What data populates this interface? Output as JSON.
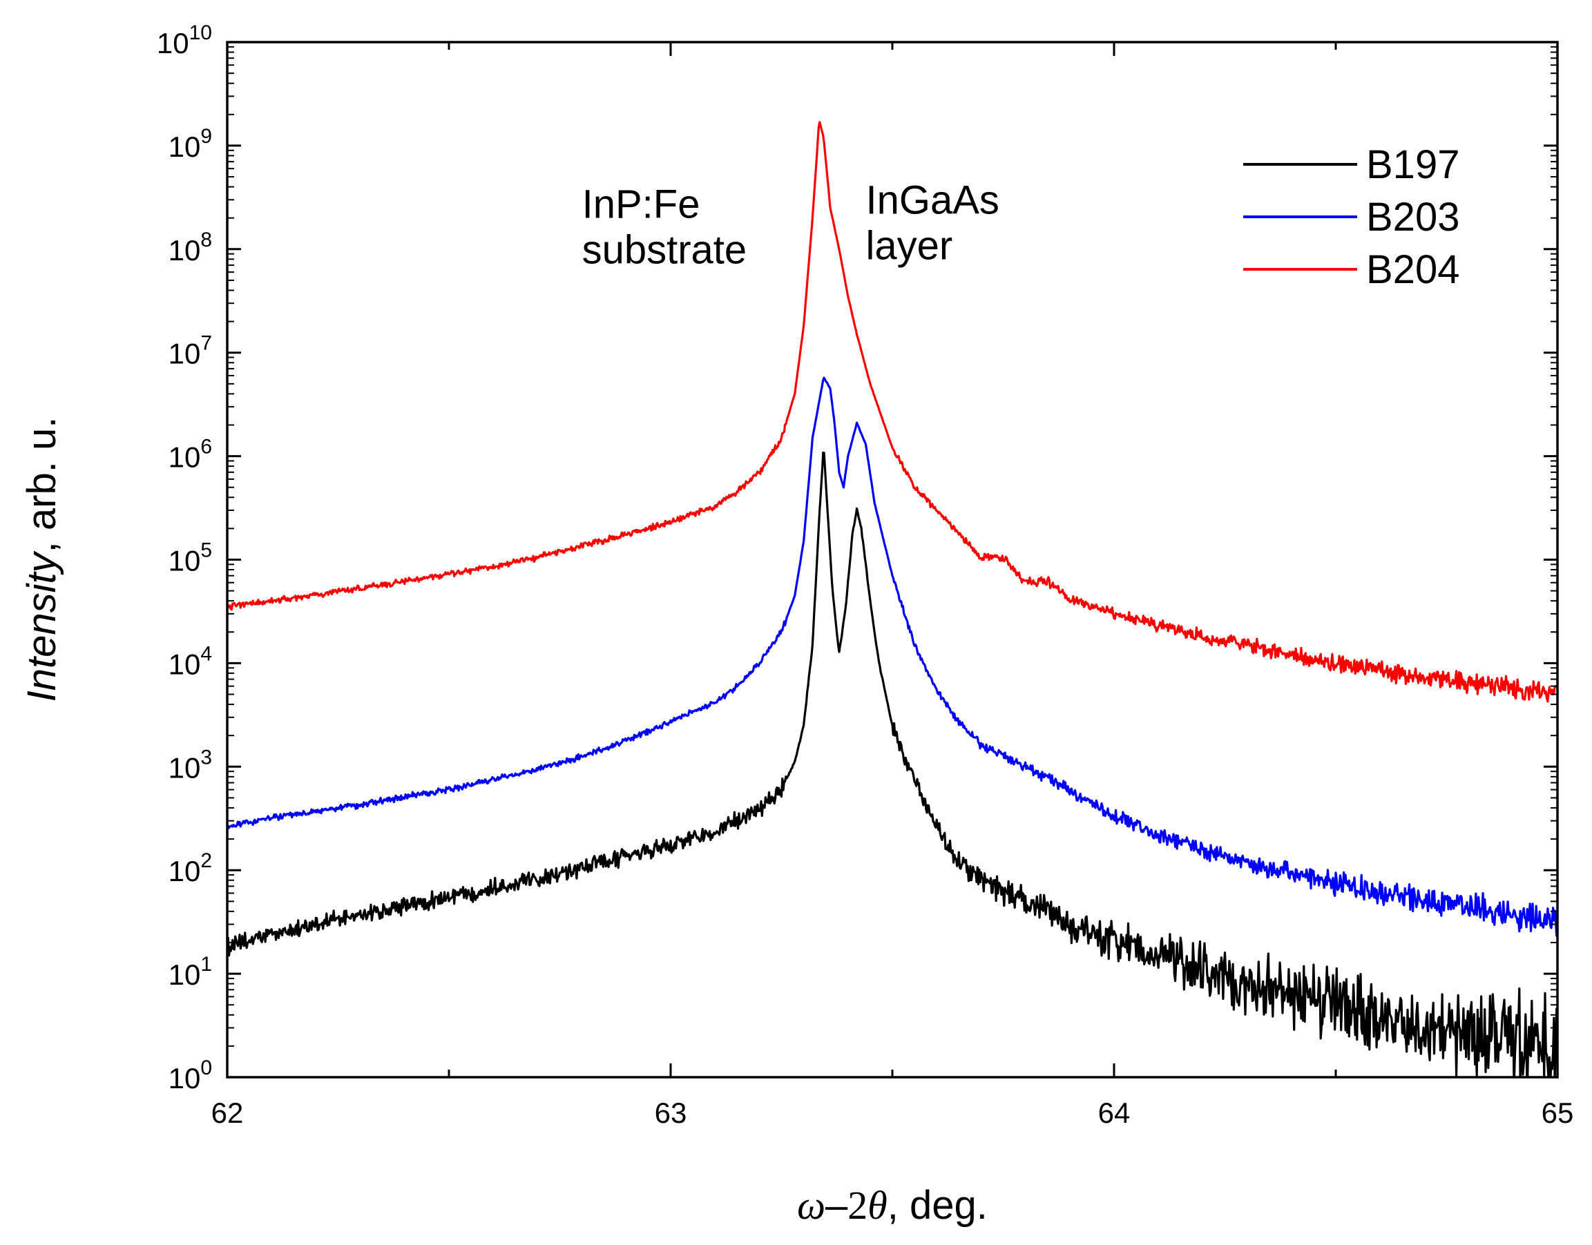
{
  "chart_data": {
    "type": "line",
    "yscale": "log",
    "xlabel": {
      "omega": "ω",
      "dash": "–",
      "two": "2",
      "theta": "θ",
      "suffix": ", deg."
    },
    "ylabel": {
      "italic": "Intensity",
      "suffix": ", arb. u."
    },
    "xlim": [
      62,
      65
    ],
    "ylim_exponent": [
      0,
      10
    ],
    "x_ticks": [
      {
        "value": 62,
        "label": "62"
      },
      {
        "value": 63,
        "label": "63"
      },
      {
        "value": 64,
        "label": "64"
      },
      {
        "value": 65,
        "label": "65"
      }
    ],
    "x_minor_ticks": [
      62.5,
      63.5,
      64.5
    ],
    "y_ticks": [
      {
        "exp": 0,
        "base": "10",
        "sup": "0"
      },
      {
        "exp": 1,
        "base": "10",
        "sup": "1"
      },
      {
        "exp": 2,
        "base": "10",
        "sup": "2"
      },
      {
        "exp": 3,
        "base": "10",
        "sup": "3"
      },
      {
        "exp": 4,
        "base": "10",
        "sup": "4"
      },
      {
        "exp": 5,
        "base": "10",
        "sup": "5"
      },
      {
        "exp": 6,
        "base": "10",
        "sup": "6"
      },
      {
        "exp": 7,
        "base": "10",
        "sup": "7"
      },
      {
        "exp": 8,
        "base": "10",
        "sup": "8"
      },
      {
        "exp": 9,
        "base": "10",
        "sup": "9"
      },
      {
        "exp": 10,
        "base": "10",
        "sup": "10"
      }
    ],
    "annotations": [
      {
        "lines": [
          "InP:Fe",
          "substrate"
        ],
        "x": 62.8,
        "y": 200000000.0
      },
      {
        "lines": [
          "InGaAs",
          "layer"
        ],
        "x": 63.44,
        "y": 220000000.0
      }
    ],
    "legend_position": "top-right",
    "series": [
      {
        "name": "B197",
        "color": "#000000",
        "points": [
          [
            62.0,
            18
          ],
          [
            62.1,
            24
          ],
          [
            62.2,
            30
          ],
          [
            62.3,
            37
          ],
          [
            62.4,
            45
          ],
          [
            62.5,
            55
          ],
          [
            62.6,
            68
          ],
          [
            62.7,
            85
          ],
          [
            62.8,
            105
          ],
          [
            62.9,
            135
          ],
          [
            63.0,
            175
          ],
          [
            63.1,
            240
          ],
          [
            63.2,
            380
          ],
          [
            63.25,
            600
          ],
          [
            63.28,
            1100
          ],
          [
            63.3,
            2500
          ],
          [
            63.32,
            15000
          ],
          [
            63.335,
            250000
          ],
          [
            63.345,
            1250000
          ],
          [
            63.355,
            250000
          ],
          [
            63.365,
            50000
          ],
          [
            63.38,
            12500
          ],
          [
            63.395,
            35000
          ],
          [
            63.41,
            180000
          ],
          [
            63.42,
            310000
          ],
          [
            63.43,
            200000
          ],
          [
            63.45,
            40000
          ],
          [
            63.47,
            10000
          ],
          [
            63.5,
            2500
          ],
          [
            63.55,
            700
          ],
          [
            63.6,
            260
          ],
          [
            63.65,
            120
          ],
          [
            63.7,
            80
          ],
          [
            63.8,
            50
          ],
          [
            63.9,
            30
          ],
          [
            64.0,
            20
          ],
          [
            64.1,
            15
          ],
          [
            64.2,
            11
          ],
          [
            64.3,
            8
          ],
          [
            64.4,
            6
          ],
          [
            64.5,
            5
          ],
          [
            64.6,
            4
          ],
          [
            64.7,
            3.2
          ],
          [
            64.8,
            2.6
          ],
          [
            64.9,
            2.2
          ],
          [
            65.0,
            2
          ]
        ],
        "noise": 0.1,
        "noise_growth": 0.5
      },
      {
        "name": "B203",
        "color": "#0000ff",
        "points": [
          [
            62.0,
            260
          ],
          [
            62.1,
            320
          ],
          [
            62.2,
            370
          ],
          [
            62.3,
            430
          ],
          [
            62.4,
            510
          ],
          [
            62.5,
            600
          ],
          [
            62.6,
            750
          ],
          [
            62.7,
            950
          ],
          [
            62.8,
            1250
          ],
          [
            62.9,
            1800
          ],
          [
            63.0,
            2700
          ],
          [
            63.1,
            4200
          ],
          [
            63.15,
            6000
          ],
          [
            63.2,
            10000
          ],
          [
            63.25,
            20000
          ],
          [
            63.28,
            45000
          ],
          [
            63.3,
            150000
          ],
          [
            63.32,
            1500000
          ],
          [
            63.345,
            5800000
          ],
          [
            63.36,
            4500000
          ],
          [
            63.37,
            2000000
          ],
          [
            63.38,
            700000
          ],
          [
            63.39,
            500000
          ],
          [
            63.4,
            1000000
          ],
          [
            63.42,
            2100000
          ],
          [
            63.44,
            1300000
          ],
          [
            63.46,
            350000
          ],
          [
            63.5,
            70000
          ],
          [
            63.55,
            15000
          ],
          [
            63.6,
            5500
          ],
          [
            63.65,
            2700
          ],
          [
            63.7,
            1600
          ],
          [
            63.8,
            1000
          ],
          [
            63.9,
            600
          ],
          [
            64.0,
            330
          ],
          [
            64.1,
            220
          ],
          [
            64.2,
            160
          ],
          [
            64.3,
            120
          ],
          [
            64.4,
            95
          ],
          [
            64.5,
            75
          ],
          [
            64.6,
            62
          ],
          [
            64.7,
            52
          ],
          [
            64.8,
            44
          ],
          [
            64.9,
            38
          ],
          [
            65.0,
            32
          ]
        ],
        "noise": 0.035,
        "noise_growth": 0.15
      },
      {
        "name": "B204",
        "color": "#ff0000",
        "points": [
          [
            62.0,
            35000
          ],
          [
            62.1,
            40000
          ],
          [
            62.2,
            46000
          ],
          [
            62.3,
            53000
          ],
          [
            62.4,
            62000
          ],
          [
            62.5,
            72000
          ],
          [
            62.6,
            86000
          ],
          [
            62.7,
            105000
          ],
          [
            62.8,
            135000
          ],
          [
            62.9,
            175000
          ],
          [
            63.0,
            230000
          ],
          [
            63.1,
            330000
          ],
          [
            63.15,
            450000
          ],
          [
            63.2,
            700000
          ],
          [
            63.25,
            1500000
          ],
          [
            63.28,
            4000000
          ],
          [
            63.3,
            18000000
          ],
          [
            63.32,
            200000000
          ],
          [
            63.335,
            1750000000
          ],
          [
            63.345,
            1200000000
          ],
          [
            63.36,
            250000000
          ],
          [
            63.38,
            100000000
          ],
          [
            63.4,
            35000000
          ],
          [
            63.42,
            15000000
          ],
          [
            63.45,
            5000000
          ],
          [
            63.5,
            1200000
          ],
          [
            63.55,
            500000
          ],
          [
            63.6,
            300000
          ],
          [
            63.65,
            180000
          ],
          [
            63.7,
            105000
          ],
          [
            63.75,
            105000
          ],
          [
            63.8,
            60000
          ],
          [
            63.85,
            62000
          ],
          [
            63.9,
            42000
          ],
          [
            64.0,
            30000
          ],
          [
            64.1,
            23000
          ],
          [
            64.2,
            18000
          ],
          [
            64.3,
            15000
          ],
          [
            64.4,
            12000
          ],
          [
            64.5,
            10000
          ],
          [
            64.6,
            8500
          ],
          [
            64.7,
            7200
          ],
          [
            64.8,
            6300
          ],
          [
            64.9,
            5600
          ],
          [
            65.0,
            5200
          ]
        ],
        "noise": 0.035,
        "noise_growth": 0.1
      }
    ]
  }
}
